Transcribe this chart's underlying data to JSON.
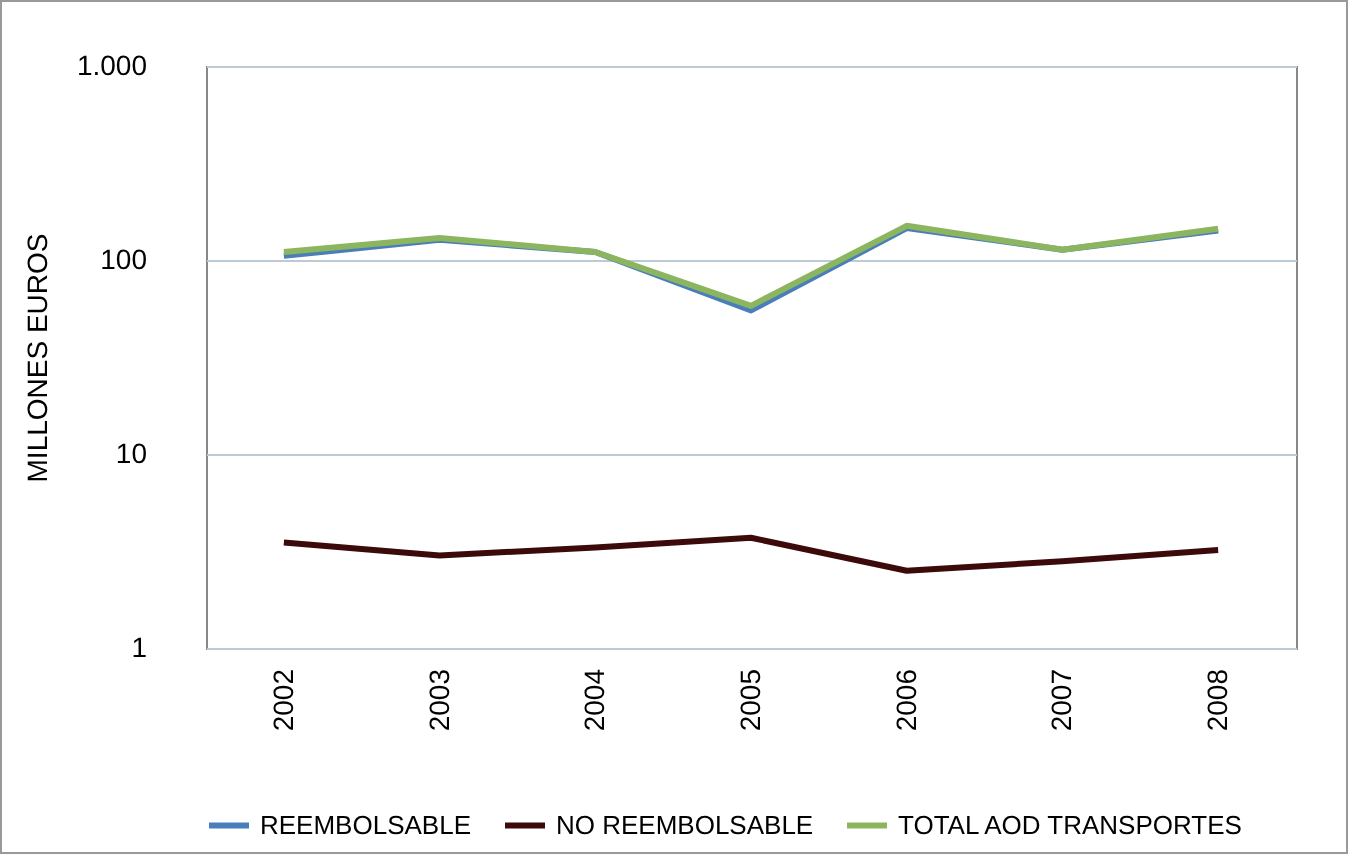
{
  "chart_data": {
    "type": "line",
    "ylabel": "MILLONES EUROS",
    "categories": [
      "2002",
      "2003",
      "2004",
      "2005",
      "2006",
      "2007",
      "2008"
    ],
    "series": [
      {
        "name": "REEMBOLSABLE",
        "color": "#4a7ebb",
        "values": [
          105,
          127,
          110,
          55,
          146,
          113,
          142
        ]
      },
      {
        "name": "NO REEMBOLSABLE",
        "color": "#3d0a0a",
        "values": [
          3.5,
          3.0,
          3.3,
          3.7,
          2.5,
          2.8,
          3.2
        ]
      },
      {
        "name": "TOTAL AOD TRANSPORTES",
        "color": "#8cb560",
        "values": [
          110,
          130,
          110,
          58,
          150,
          113,
          145
        ]
      }
    ],
    "ylim": [
      1,
      1000
    ],
    "yticks": [
      1,
      10,
      100,
      {
        "value": 1000,
        "label": "1.000"
      }
    ],
    "log": true,
    "grid": "y",
    "legend": "bottom",
    "marker": "none",
    "line_style": "solid"
  }
}
